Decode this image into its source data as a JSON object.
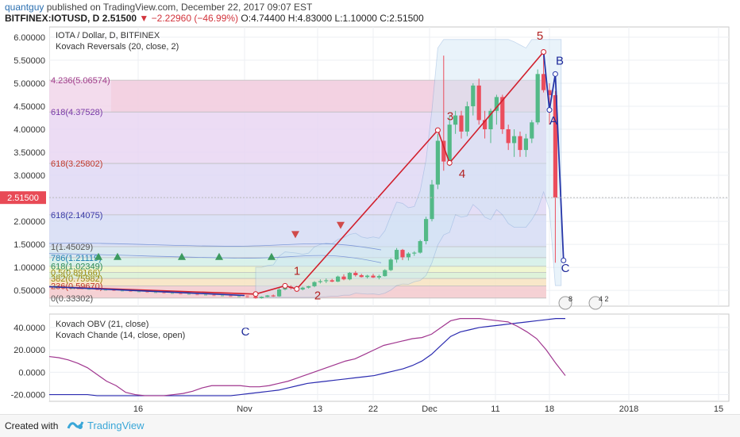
{
  "header": {
    "author": "quantguy",
    "published": "published on TradingView.com, December 22, 2017 09:07 EST",
    "symbol": "BITFINEX:IOTUSD, D",
    "last": "2.51500",
    "change": "▼ −2.22960 (−46.99%)",
    "open": "O:4.74400",
    "high": "H:4.83000",
    "low": "L:1.10000",
    "close": "C:2.51500"
  },
  "chart_data": [
    {
      "type": "candlestick",
      "title": "IOTA / Dollar, D, BITFINEX",
      "indicator": "Kovach Reversals (20, close, 2)",
      "x_ticks": [
        "16",
        "Nov",
        "13",
        "22",
        "Dec",
        "11",
        "18",
        "2018",
        "15"
      ],
      "y_ticks": [
        "6.00000",
        "5.50000",
        "5.00000",
        "4.50000",
        "4.00000",
        "3.50000",
        "3.00000",
        "2.00000",
        "1.50000",
        "1.00000",
        "0.50000"
      ],
      "ylim": [
        0.33,
        6.05
      ],
      "grid": true,
      "last_price_label": "2.51500",
      "candles": [
        [
          0.36,
          0.37,
          0.32,
          0.33
        ],
        [
          0.33,
          0.37,
          0.32,
          0.36
        ],
        [
          0.36,
          0.4,
          0.35,
          0.39
        ],
        [
          0.39,
          0.41,
          0.36,
          0.37
        ],
        [
          0.37,
          0.55,
          0.36,
          0.52
        ],
        [
          0.52,
          0.62,
          0.5,
          0.58
        ],
        [
          0.58,
          0.61,
          0.52,
          0.55
        ],
        [
          0.55,
          0.6,
          0.49,
          0.52
        ],
        [
          0.52,
          0.58,
          0.5,
          0.56
        ],
        [
          0.56,
          0.6,
          0.54,
          0.59
        ],
        [
          0.59,
          0.7,
          0.57,
          0.68
        ],
        [
          0.68,
          0.74,
          0.65,
          0.7
        ],
        [
          0.7,
          0.76,
          0.66,
          0.72
        ],
        [
          0.72,
          0.75,
          0.68,
          0.69
        ],
        [
          0.69,
          0.82,
          0.68,
          0.8
        ],
        [
          0.8,
          0.85,
          0.72,
          0.74
        ],
        [
          0.74,
          0.9,
          0.72,
          0.88
        ],
        [
          0.88,
          0.92,
          0.8,
          0.83
        ],
        [
          0.83,
          0.86,
          0.78,
          0.79
        ],
        [
          0.79,
          0.84,
          0.76,
          0.82
        ],
        [
          0.82,
          0.86,
          0.77,
          0.78
        ],
        [
          0.78,
          0.84,
          0.74,
          0.81
        ],
        [
          0.81,
          0.96,
          0.8,
          0.94
        ],
        [
          0.94,
          1.2,
          0.92,
          1.17
        ],
        [
          1.17,
          1.42,
          1.1,
          1.38
        ],
        [
          1.38,
          1.4,
          1.16,
          1.22
        ],
        [
          1.22,
          1.33,
          1.15,
          1.3
        ],
        [
          1.3,
          1.35,
          1.25,
          1.32
        ],
        [
          1.32,
          1.6,
          1.3,
          1.57
        ],
        [
          1.57,
          2.1,
          1.5,
          2.05
        ],
        [
          2.05,
          2.9,
          2.0,
          2.8
        ],
        [
          2.8,
          3.9,
          2.7,
          3.75
        ],
        [
          3.75,
          5.6,
          3.1,
          3.3
        ],
        [
          3.3,
          4.3,
          3.2,
          4.1
        ],
        [
          4.1,
          4.4,
          3.9,
          4.3
        ],
        [
          4.3,
          4.4,
          3.8,
          3.95
        ],
        [
          3.95,
          4.6,
          3.85,
          4.5
        ],
        [
          4.5,
          5.0,
          4.3,
          4.95
        ],
        [
          4.95,
          5.1,
          4.1,
          4.2
        ],
        [
          4.2,
          4.4,
          3.8,
          4.0
        ],
        [
          4.0,
          4.45,
          3.7,
          4.4
        ],
        [
          4.4,
          4.75,
          4.1,
          4.7
        ],
        [
          4.7,
          4.75,
          3.9,
          4.0
        ],
        [
          4.0,
          4.1,
          3.55,
          3.7
        ],
        [
          3.7,
          4.0,
          3.4,
          3.85
        ],
        [
          3.85,
          3.95,
          3.4,
          3.55
        ],
        [
          3.55,
          3.9,
          3.4,
          3.8
        ],
        [
          3.8,
          4.2,
          3.7,
          4.15
        ],
        [
          4.15,
          5.3,
          4.1,
          5.2
        ],
        [
          5.2,
          5.6,
          4.8,
          4.85
        ],
        [
          4.85,
          5.0,
          4.1,
          4.74
        ],
        [
          4.74,
          4.83,
          1.1,
          2.515
        ]
      ],
      "fib_levels": [
        {
          "label": "0(0.33302)",
          "value": 0.33302,
          "fill": "#f3c9cc",
          "text_color": "#555555"
        },
        {
          "label": "236(0.59670)",
          "value": 0.5967,
          "fill": "#f7e3c0",
          "text_color": "#c0392b"
        },
        {
          "label": "0.5(0.89166)",
          "value": 0.89166,
          "fill": "#edf4c8",
          "text_color": "#9a8a10"
        },
        {
          "label": "382(0.75982)",
          "value": 0.75982,
          "fill": "#d8f0d2",
          "text_color": "#9a8a10"
        },
        {
          "label": "618(1.02349)",
          "value": 1.02349,
          "fill": "#d2efe6",
          "text_color": "#2e8b57"
        },
        {
          "label": "786(1.21119)",
          "value": 1.21119,
          "fill": "#d3e4ee",
          "text_color": "#1f7fb0"
        },
        {
          "label": "1(1.45029)",
          "value": 1.45029,
          "fill": "#d6dcf4",
          "text_color": "#555555"
        },
        {
          "label": "618(2.14075)",
          "value": 2.14075,
          "fill": "#dfd8f5",
          "text_color": "#3a3aa8"
        },
        {
          "label": "618(3.25802)",
          "value": 3.25802,
          "fill": "#e9d6f2",
          "text_color": "#c0392b"
        },
        {
          "label": "618(4.37528)",
          "value": 4.37528,
          "fill": "#f1d6ea",
          "text_color": "#7a3aa8"
        },
        {
          "label": "4.236(5.06574)",
          "value": 5.06574,
          "fill": "#f3cfdf",
          "text_color": "#a03a8a"
        }
      ],
      "wave_labels": [
        {
          "label": "1",
          "x_index": 5,
          "value": 0.62,
          "color": "#b22222"
        },
        {
          "label": "2",
          "x_index": 7,
          "value": 0.49,
          "color": "#b22222"
        },
        {
          "label": "3",
          "x_index": 31,
          "value": 3.9,
          "color": "#b22222"
        },
        {
          "label": "4",
          "x_index": 32,
          "value": 3.1,
          "color": "#b22222"
        },
        {
          "label": "5",
          "x_index": 49,
          "value": 5.6,
          "color": "#b22222"
        },
        {
          "label": "A",
          "x_index": 50,
          "value": 4.4,
          "color": "#1e2a9a"
        },
        {
          "label": "B",
          "x_index": 51,
          "value": 5.2,
          "color": "#1e2a9a"
        },
        {
          "label": "C",
          "x_index": 52,
          "value": 1.15,
          "color": "#1e2a9a"
        },
        {
          "label": "C",
          "x_index": -1,
          "value": 0.33,
          "color": "#1e2a9a"
        }
      ],
      "markers": [
        {
          "type": "triangle-up",
          "color": "#3c9a5f",
          "count": 5
        },
        {
          "type": "triangle-down",
          "color": "#d04a4a",
          "count": 2
        }
      ],
      "badges": [
        "8",
        "4 2"
      ]
    },
    {
      "type": "line",
      "series": [
        {
          "name": "Kovach OBV (21, close)",
          "color": "#2b2bb0"
        },
        {
          "name": "Kovach Chande (14, close, open)",
          "color": "#a0368f"
        }
      ],
      "y_ticks": [
        "40.0000",
        "20.0000",
        "0.0000",
        "-20.0000"
      ],
      "ylim": [
        -26,
        52
      ],
      "obv": [
        -20,
        -20,
        -20,
        -20,
        -20,
        -21,
        -21,
        -21,
        -21,
        -21,
        -21,
        -21,
        -21,
        -21,
        -21,
        -21,
        -21,
        -21,
        -21,
        -21,
        -20,
        -19,
        -18,
        -17,
        -16,
        -14,
        -12,
        -10,
        -9,
        -8,
        -7,
        -6,
        -5,
        -4,
        -3,
        -1,
        1,
        3,
        6,
        10,
        16,
        24,
        32,
        36,
        38,
        40,
        41,
        42,
        43,
        44,
        45,
        46,
        47,
        48,
        48
      ],
      "chande": [
        14,
        13,
        11,
        8,
        4,
        -2,
        -8,
        -12,
        -18,
        -20,
        -21,
        -21,
        -21,
        -20,
        -19,
        -17,
        -14,
        -12,
        -12,
        -12,
        -12,
        -13,
        -13,
        -12,
        -10,
        -8,
        -5,
        -2,
        1,
        4,
        7,
        10,
        12,
        16,
        20,
        24,
        26,
        28,
        30,
        31,
        34,
        40,
        46,
        48,
        48,
        48,
        47,
        46,
        45,
        41,
        36,
        30,
        20,
        8,
        -3
      ]
    }
  ]
}
